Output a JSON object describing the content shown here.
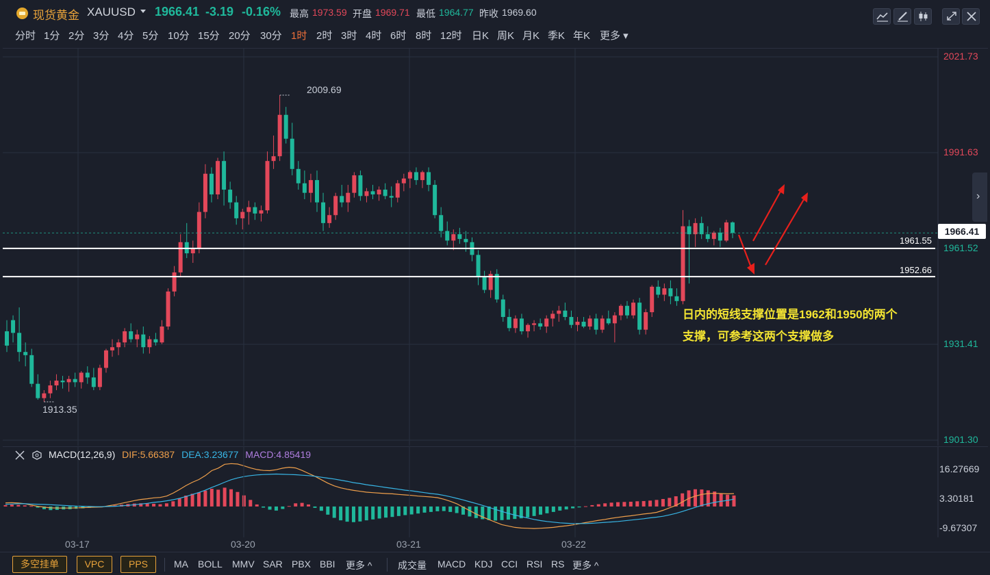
{
  "header": {
    "name": "现货黄金",
    "code": "XAUUSD",
    "last_price": "1966.41",
    "change_abs": "-3.19",
    "change_pct": "-0.16%",
    "high_label": "最高",
    "high_value": "1973.59",
    "open_label": "开盘",
    "open_value": "1969.71",
    "low_label": "最低",
    "low_value": "1964.77",
    "prev_close_label": "昨收",
    "prev_close_value": "1969.60"
  },
  "periods": [
    "分时",
    "1分",
    "2分",
    "3分",
    "4分",
    "5分",
    "10分",
    "15分",
    "20分",
    "30分",
    "1时",
    "2时",
    "3时",
    "4时",
    "6时",
    "8时",
    "12时",
    "日K",
    "周K",
    "月K",
    "季K",
    "年K",
    "更多"
  ],
  "active_period": "1时",
  "price_axis": [
    "2021.73",
    "1991.63",
    "1961.52",
    "1931.41",
    "1901.30"
  ],
  "current_price_tag": "1966.41",
  "chart_marks": {
    "high": "2009.69",
    "low": "1913.35"
  },
  "support_lines": [
    {
      "label": "1961.55"
    },
    {
      "label": "1952.66"
    }
  ],
  "annotation": {
    "line1": "日内的短线支撑位置是1962和1950的两个",
    "line2": "支撑，可参考这两个支撑做多"
  },
  "macd": {
    "title": "MACD(12,26,9)",
    "dif": "DIF:5.66387",
    "dea": "DEA:3.23677",
    "macd": "MACD:4.85419",
    "axis": [
      "16.27669",
      "3.30181",
      "-9.67307"
    ]
  },
  "dates": [
    "03-17",
    "03-20",
    "03-21",
    "03-22"
  ],
  "bottom": {
    "buttons": [
      "多空挂单",
      "VPC",
      "PPS"
    ],
    "indicators_main": [
      "MA",
      "BOLL",
      "MMV",
      "SAR",
      "PBX",
      "BBI"
    ],
    "more_main": "更多 ^",
    "indicators_sub": [
      "成交量",
      "MACD",
      "KDJ",
      "CCI",
      "RSI",
      "RS"
    ],
    "more_sub": "更多 ^"
  },
  "colors": {
    "up": "#e3485a",
    "down": "#1fb89b",
    "accent": "#e9a33a",
    "active": "#ec6f3a",
    "annotation": "#f3e432"
  },
  "chart_data": {
    "type": "candlestick",
    "ylim": [
      1901.3,
      2021.73
    ],
    "y_ticks": [
      2021.73,
      1991.63,
      1961.52,
      1931.41,
      1901.3
    ],
    "candles": [
      [
        1935.5,
        1939.0,
        1929.0,
        1931.0
      ],
      [
        1939.0,
        1940.5,
        1932.0,
        1935.0
      ],
      [
        1935.0,
        1943.0,
        1926.0,
        1929.0
      ],
      [
        1929.0,
        1932.0,
        1924.5,
        1928.0
      ],
      [
        1928.0,
        1930.0,
        1918.0,
        1919.0
      ],
      [
        1919.0,
        1922.0,
        1914.0,
        1914.5
      ],
      [
        1914.5,
        1917.0,
        1913.35,
        1916.0
      ],
      [
        1916.0,
        1920.0,
        1914.5,
        1918.5
      ],
      [
        1918.5,
        1922.0,
        1917.0,
        1920.0
      ],
      [
        1920.0,
        1921.5,
        1917.5,
        1919.5
      ],
      [
        1919.5,
        1921.5,
        1916.5,
        1920.5
      ],
      [
        1920.5,
        1922.5,
        1918.0,
        1919.5
      ],
      [
        1919.5,
        1923.0,
        1917.5,
        1922.5
      ],
      [
        1922.5,
        1924.5,
        1919.0,
        1921.0
      ],
      [
        1921.0,
        1924.0,
        1917.0,
        1918.0
      ],
      [
        1918.0,
        1925.0,
        1917.0,
        1924.0
      ],
      [
        1924.0,
        1930.0,
        1922.5,
        1929.5
      ],
      [
        1929.5,
        1933.0,
        1927.5,
        1930.5
      ],
      [
        1930.5,
        1933.0,
        1928.0,
        1932.0
      ],
      [
        1932.0,
        1936.5,
        1930.5,
        1935.5
      ],
      [
        1935.5,
        1938.0,
        1932.0,
        1933.0
      ],
      [
        1933.0,
        1936.0,
        1930.5,
        1934.5
      ],
      [
        1934.5,
        1937.0,
        1928.5,
        1930.5
      ],
      [
        1930.5,
        1934.0,
        1928.5,
        1933.0
      ],
      [
        1933.0,
        1935.0,
        1931.0,
        1932.0
      ],
      [
        1932.0,
        1939.0,
        1931.5,
        1937.0
      ],
      [
        1937.0,
        1949.0,
        1936.0,
        1948.0
      ],
      [
        1948.0,
        1956.0,
        1946.5,
        1954.0
      ],
      [
        1954.0,
        1966.0,
        1952.5,
        1963.5
      ],
      [
        1963.5,
        1969.5,
        1958.5,
        1960.0
      ],
      [
        1960.0,
        1964.0,
        1957.0,
        1961.5
      ],
      [
        1961.5,
        1976.0,
        1960.0,
        1973.0
      ],
      [
        1973.0,
        1988.0,
        1971.0,
        1985.0
      ],
      [
        1985.0,
        1987.0,
        1976.0,
        1978.5
      ],
      [
        1978.5,
        1990.0,
        1977.0,
        1989.0
      ],
      [
        1989.0,
        1992.0,
        1975.0,
        1980.0
      ],
      [
        1980.0,
        1982.5,
        1974.0,
        1976.0
      ],
      [
        1976.0,
        1978.0,
        1969.0,
        1971.0
      ],
      [
        1971.0,
        1974.0,
        1967.5,
        1973.0
      ],
      [
        1973.0,
        1976.5,
        1969.0,
        1974.5
      ],
      [
        1974.5,
        1976.0,
        1970.5,
        1972.5
      ],
      [
        1972.5,
        1975.0,
        1970.0,
        1973.5
      ],
      [
        1973.5,
        1992.0,
        1972.5,
        1989.0
      ],
      [
        1989.0,
        1997.0,
        1986.5,
        1990.5
      ],
      [
        1990.5,
        2009.69,
        1989.0,
        2003.5
      ],
      [
        2003.5,
        2006.0,
        1994.5,
        1996.0
      ],
      [
        1996.0,
        2001.0,
        1984.5,
        1986.5
      ],
      [
        1986.5,
        1989.0,
        1980.0,
        1982.0
      ],
      [
        1982.0,
        1986.0,
        1977.0,
        1979.0
      ],
      [
        1979.0,
        1985.0,
        1976.0,
        1983.0
      ],
      [
        1983.0,
        1986.0,
        1973.0,
        1976.0
      ],
      [
        1976.0,
        1979.0,
        1967.0,
        1969.5
      ],
      [
        1969.5,
        1974.5,
        1968.0,
        1972.0
      ],
      [
        1972.0,
        1979.0,
        1970.5,
        1978.0
      ],
      [
        1978.0,
        1981.5,
        1974.5,
        1976.0
      ],
      [
        1976.0,
        1981.5,
        1973.0,
        1979.0
      ],
      [
        1979.0,
        1985.5,
        1977.5,
        1984.5
      ],
      [
        1984.5,
        1986.0,
        1976.5,
        1978.0
      ],
      [
        1978.0,
        1980.5,
        1976.0,
        1979.5
      ],
      [
        1979.5,
        1981.5,
        1977.0,
        1978.5
      ],
      [
        1978.5,
        1981.0,
        1976.5,
        1980.0
      ],
      [
        1980.0,
        1982.0,
        1977.0,
        1978.0
      ],
      [
        1978.0,
        1981.0,
        1974.5,
        1977.5
      ],
      [
        1977.5,
        1983.0,
        1976.0,
        1982.0
      ],
      [
        1982.0,
        1985.0,
        1979.5,
        1983.5
      ],
      [
        1983.5,
        1986.0,
        1980.5,
        1985.5
      ],
      [
        1985.5,
        1987.0,
        1981.5,
        1983.0
      ],
      [
        1983.0,
        1986.0,
        1980.5,
        1985.5
      ],
      [
        1985.5,
        1987.0,
        1979.5,
        1981.5
      ],
      [
        1981.5,
        1983.0,
        1971.0,
        1972.0
      ],
      [
        1972.0,
        1974.5,
        1965.0,
        1967.0
      ],
      [
        1967.0,
        1970.0,
        1962.5,
        1964.0
      ],
      [
        1964.0,
        1967.5,
        1961.0,
        1966.0
      ],
      [
        1966.0,
        1968.0,
        1963.0,
        1964.5
      ],
      [
        1964.5,
        1967.0,
        1960.5,
        1963.5
      ],
      [
        1963.5,
        1965.0,
        1957.5,
        1959.5
      ],
      [
        1959.5,
        1961.0,
        1950.0,
        1952.5
      ],
      [
        1952.5,
        1954.5,
        1947.5,
        1948.5
      ],
      [
        1948.5,
        1954.5,
        1946.0,
        1953.5
      ],
      [
        1953.5,
        1955.0,
        1944.5,
        1945.5
      ],
      [
        1945.5,
        1947.0,
        1938.5,
        1940.0
      ],
      [
        1940.0,
        1942.5,
        1935.5,
        1936.5
      ],
      [
        1936.5,
        1940.5,
        1935.0,
        1939.5
      ],
      [
        1939.5,
        1941.0,
        1934.5,
        1935.5
      ],
      [
        1935.5,
        1938.0,
        1933.5,
        1937.5
      ],
      [
        1937.5,
        1939.0,
        1935.5,
        1938.0
      ],
      [
        1938.0,
        1939.5,
        1936.0,
        1937.0
      ],
      [
        1937.0,
        1940.5,
        1935.0,
        1939.5
      ],
      [
        1939.5,
        1942.0,
        1937.0,
        1941.0
      ],
      [
        1941.0,
        1943.5,
        1938.5,
        1942.0
      ],
      [
        1942.0,
        1944.5,
        1939.0,
        1940.0
      ],
      [
        1940.0,
        1942.0,
        1936.5,
        1937.5
      ],
      [
        1937.5,
        1940.0,
        1935.5,
        1938.5
      ],
      [
        1938.5,
        1940.0,
        1936.5,
        1937.0
      ],
      [
        1937.0,
        1940.5,
        1936.0,
        1939.5
      ],
      [
        1939.5,
        1941.0,
        1934.5,
        1936.0
      ],
      [
        1936.0,
        1940.5,
        1935.0,
        1939.5
      ],
      [
        1939.5,
        1942.0,
        1937.5,
        1938.0
      ],
      [
        1938.0,
        1941.5,
        1932.0,
        1940.5
      ],
      [
        1940.5,
        1944.0,
        1939.0,
        1943.5
      ],
      [
        1943.5,
        1945.0,
        1939.5,
        1940.5
      ],
      [
        1940.5,
        1945.5,
        1939.5,
        1944.5
      ],
      [
        1944.5,
        1946.0,
        1934.5,
        1936.0
      ],
      [
        1936.0,
        1942.5,
        1934.5,
        1941.5
      ],
      [
        1941.5,
        1950.0,
        1940.0,
        1949.5
      ],
      [
        1949.5,
        1951.5,
        1946.0,
        1947.0
      ],
      [
        1947.0,
        1950.5,
        1945.0,
        1949.0
      ],
      [
        1949.0,
        1951.5,
        1944.0,
        1946.5
      ],
      [
        1946.5,
        1949.0,
        1943.5,
        1945.0
      ],
      [
        1945.0,
        1973.59,
        1944.0,
        1968.5
      ],
      [
        1968.5,
        1970.5,
        1950.5,
        1966.0
      ],
      [
        1966.0,
        1971.0,
        1962.0,
        1969.5
      ],
      [
        1969.5,
        1971.5,
        1964.5,
        1966.0
      ],
      [
        1966.0,
        1968.5,
        1963.5,
        1964.5
      ],
      [
        1964.5,
        1967.0,
        1962.5,
        1966.5
      ],
      [
        1966.5,
        1968.0,
        1962.0,
        1964.0
      ],
      [
        1964.0,
        1970.5,
        1963.5,
        1969.71
      ],
      [
        1969.71,
        1970.0,
        1964.77,
        1966.41
      ]
    ],
    "macd_axis_ticks": [
      16.27669,
      3.30181,
      -9.67307
    ],
    "macd_histogram": [
      0.6,
      0.8,
      0.7,
      0.5,
      0.2,
      -0.5,
      -1.2,
      -1.6,
      -1.5,
      -1.3,
      -1.2,
      -1.0,
      -0.8,
      -0.6,
      -0.4,
      -0.3,
      0.2,
      0.5,
      0.8,
      1.1,
      1.3,
      1.4,
      1.3,
      1.2,
      1.0,
      1.4,
      2.3,
      3.5,
      4.8,
      5.6,
      6.2,
      7.0,
      7.8,
      7.4,
      8.3,
      7.6,
      6.4,
      4.9,
      2.9,
      0.9,
      -0.5,
      -1.4,
      -1.8,
      -1.1,
      0.2,
      1.4,
      1.6,
      0.9,
      -0.6,
      -1.9,
      -3.6,
      -5.0,
      -6.1,
      -6.7,
      -6.9,
      -6.6,
      -6.1,
      -5.7,
      -5.3,
      -4.9,
      -4.6,
      -4.2,
      -3.8,
      -3.5,
      -3.1,
      -2.7,
      -2.4,
      -2.1,
      -2.0,
      -2.4,
      -2.9,
      -3.6,
      -4.4,
      -5.1,
      -5.6,
      -6.0,
      -6.2,
      -6.0,
      -5.8,
      -5.5,
      -5.2,
      -4.8,
      -4.2,
      -3.6,
      -3.0,
      -2.4,
      -1.8,
      -1.3,
      -0.8,
      -0.4,
      0.1,
      0.6,
      1.0,
      1.4,
      1.7,
      1.9,
      2.0,
      2.1,
      2.3,
      2.4,
      2.6,
      2.9,
      3.3,
      3.8,
      4.5,
      5.8,
      7.1,
      7.6,
      7.5,
      7.1,
      6.6,
      5.8,
      5.2,
      4.85419
    ],
    "dif": [
      1.6,
      1.7,
      1.5,
      1.2,
      0.6,
      0.1,
      -0.3,
      -0.6,
      -0.7,
      -0.7,
      -0.7,
      -0.6,
      -0.5,
      -0.4,
      -0.3,
      -0.2,
      0.3,
      0.8,
      1.4,
      2.0,
      2.6,
      3.1,
      3.4,
      3.8,
      4.0,
      4.6,
      5.9,
      7.5,
      9.2,
      10.7,
      11.9,
      13.6,
      15.8,
      16.9,
      18.6,
      18.9,
      18.7,
      17.9,
      17.0,
      16.3,
      15.9,
      15.8,
      16.2,
      16.9,
      17.3,
      17.0,
      15.9,
      14.6,
      13.3,
      11.8,
      10.3,
      9.1,
      8.2,
      7.6,
      7.1,
      6.7,
      6.3,
      6.1,
      5.9,
      5.7,
      5.6,
      5.3,
      5.1,
      4.9,
      4.6,
      4.4,
      4.2,
      3.9,
      3.2,
      2.3,
      1.2,
      -0.3,
      -1.8,
      -3.3,
      -4.6,
      -5.8,
      -6.9,
      -8.0,
      -8.6,
      -9.2,
      -9.5,
      -9.6,
      -9.7,
      -9.6,
      -9.4,
      -9.2,
      -8.8,
      -8.5,
      -8.1,
      -7.6,
      -7.1,
      -6.6,
      -6.1,
      -5.7,
      -5.2,
      -4.8,
      -4.4,
      -4.1,
      -3.7,
      -3.3,
      -3.0,
      -2.6,
      -1.7,
      -0.6,
      0.5,
      2.0,
      3.6,
      4.6,
      5.3,
      5.7,
      5.8,
      5.7,
      5.6,
      5.66387
    ],
    "dea": [
      1.0,
      1.1,
      1.2,
      1.2,
      1.1,
      1.0,
      0.9,
      0.8,
      0.6,
      0.5,
      0.3,
      0.2,
      0.1,
      0.0,
      -0.1,
      -0.1,
      0.0,
      0.1,
      0.3,
      0.5,
      0.8,
      1.1,
      1.4,
      1.8,
      2.1,
      2.5,
      3.0,
      3.6,
      4.4,
      5.3,
      6.2,
      7.2,
      8.4,
      9.5,
      10.7,
      11.8,
      12.6,
      13.2,
      13.6,
      13.9,
      14.1,
      14.2,
      14.3,
      14.2,
      14.1,
      14.0,
      13.8,
      13.6,
      13.3,
      12.9,
      12.5,
      12.1,
      11.6,
      11.1,
      10.5,
      10.1,
      9.6,
      9.2,
      8.8,
      8.4,
      8.0,
      7.6,
      7.2,
      6.9,
      6.5,
      6.1,
      5.7,
      5.4,
      4.9,
      4.3,
      3.6,
      2.9,
      2.1,
      1.3,
      0.5,
      -0.4,
      -1.3,
      -2.2,
      -3.0,
      -3.8,
      -4.4,
      -5.1,
      -5.7,
      -6.2,
      -6.6,
      -6.9,
      -7.2,
      -7.4,
      -7.5,
      -7.5,
      -7.5,
      -7.4,
      -7.2,
      -7.0,
      -6.8,
      -6.6,
      -6.3,
      -6.0,
      -5.7,
      -5.4,
      -5.0,
      -4.7,
      -4.3,
      -3.7,
      -3.0,
      -2.2,
      -1.3,
      -0.4,
      0.5,
      1.2,
      1.8,
      2.3,
      2.7,
      3.23677
    ],
    "date_labels": [
      "03-17",
      "03-20",
      "03-21",
      "03-22"
    ]
  }
}
